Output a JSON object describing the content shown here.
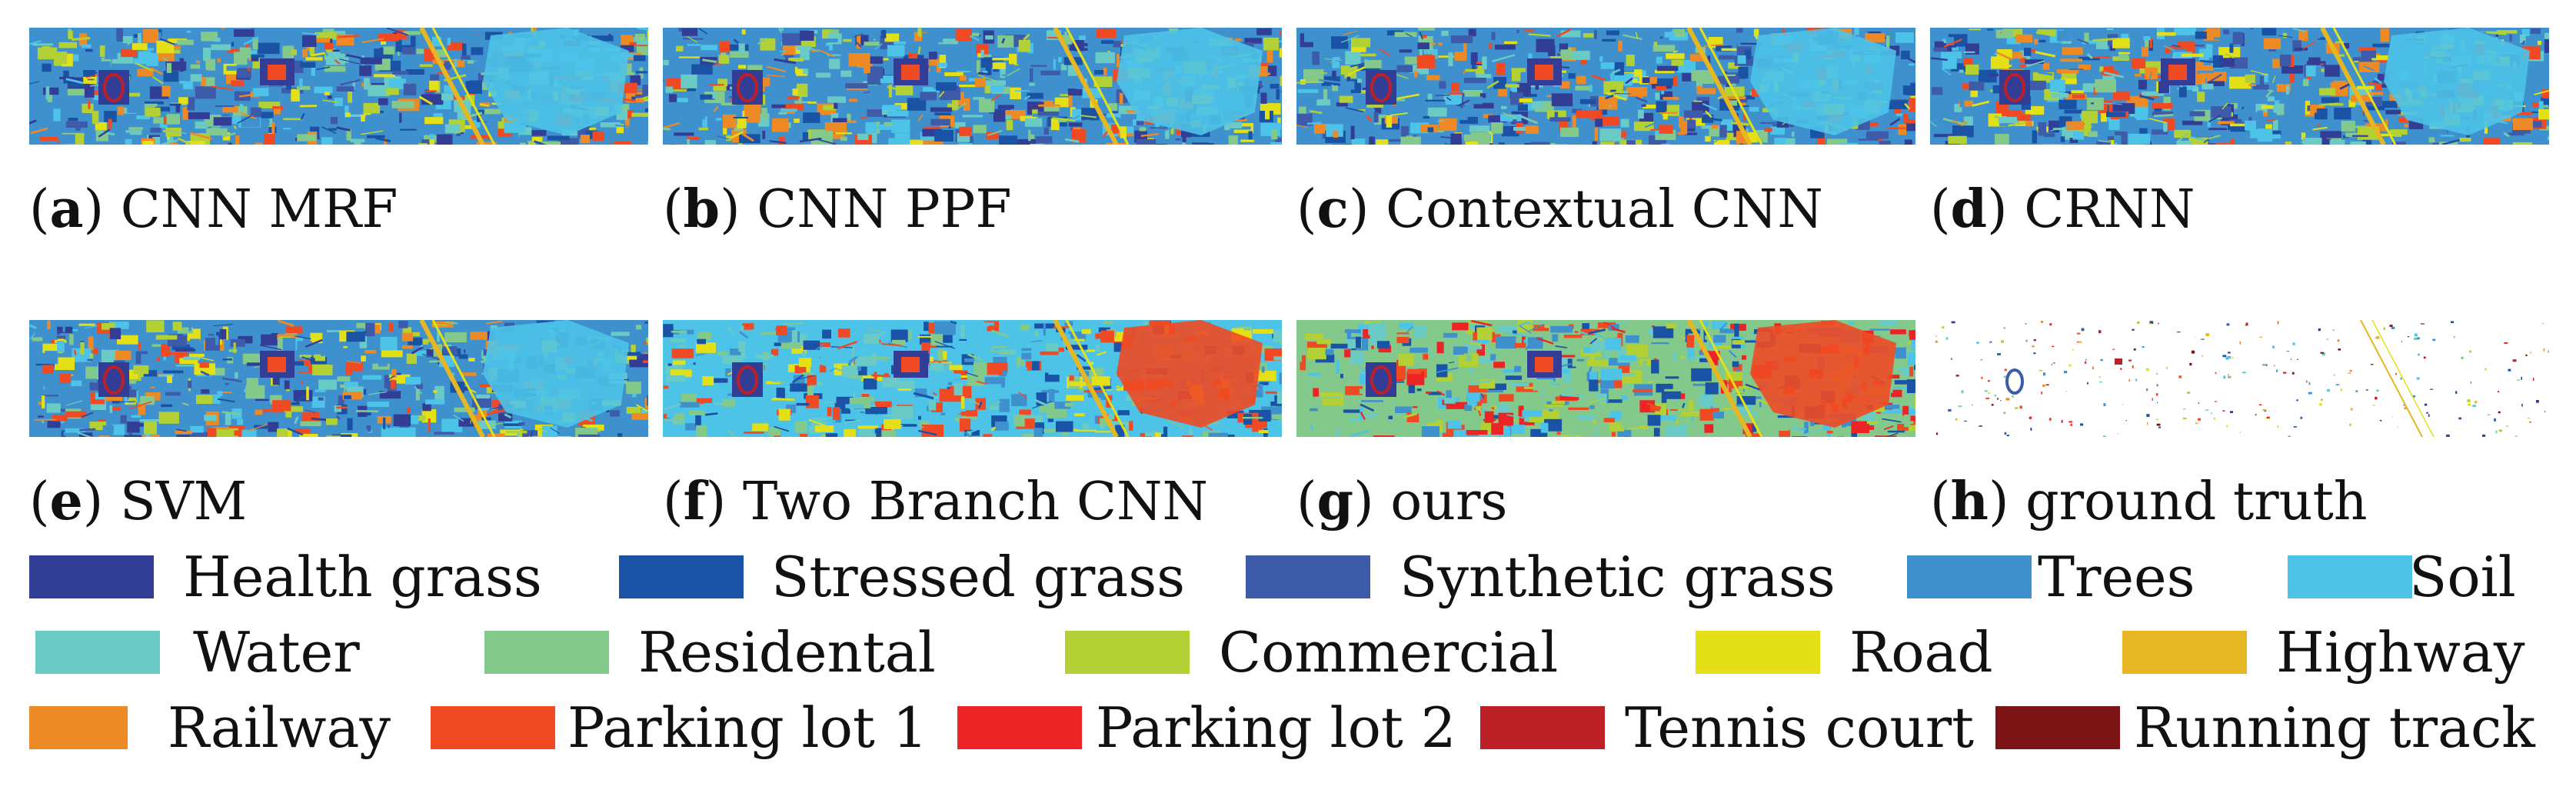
{
  "panels": [
    {
      "letter": "a",
      "label": "CNN MRF"
    },
    {
      "letter": "b",
      "label": "CNN PPF"
    },
    {
      "letter": "c",
      "label": "Contextual CNN"
    },
    {
      "letter": "d",
      "label": "CRNN"
    },
    {
      "letter": "e",
      "label": "SVM"
    },
    {
      "letter": "f",
      "label": "Two Branch CNN"
    },
    {
      "letter": "g",
      "label": "ours"
    },
    {
      "letter": "h",
      "label": "ground truth"
    }
  ],
  "legend": [
    {
      "label": "Health grass",
      "color": "#323d96"
    },
    {
      "label": "Stressed grass",
      "color": "#1a52a6"
    },
    {
      "label": "Synthetic grass",
      "color": "#3e5baa"
    },
    {
      "label": "Trees",
      "color": "#3f91cd"
    },
    {
      "label": "Soil",
      "color": "#4dc3e8"
    },
    {
      "label": "Water",
      "color": "#6acbc6"
    },
    {
      "label": "Residental",
      "color": "#83c98b"
    },
    {
      "label": "Commercial",
      "color": "#b3d135"
    },
    {
      "label": "Road",
      "color": "#e3e018"
    },
    {
      "label": "Highway",
      "color": "#e6b623"
    },
    {
      "label": "Railway",
      "color": "#ee8a26"
    },
    {
      "label": "Parking lot 1",
      "color": "#ef4a23"
    },
    {
      "label": "Parking lot 2",
      "color": "#ec2426"
    },
    {
      "label": "Tennis court",
      "color": "#bd2026"
    },
    {
      "label": "Running track",
      "color": "#7c1416"
    }
  ]
}
